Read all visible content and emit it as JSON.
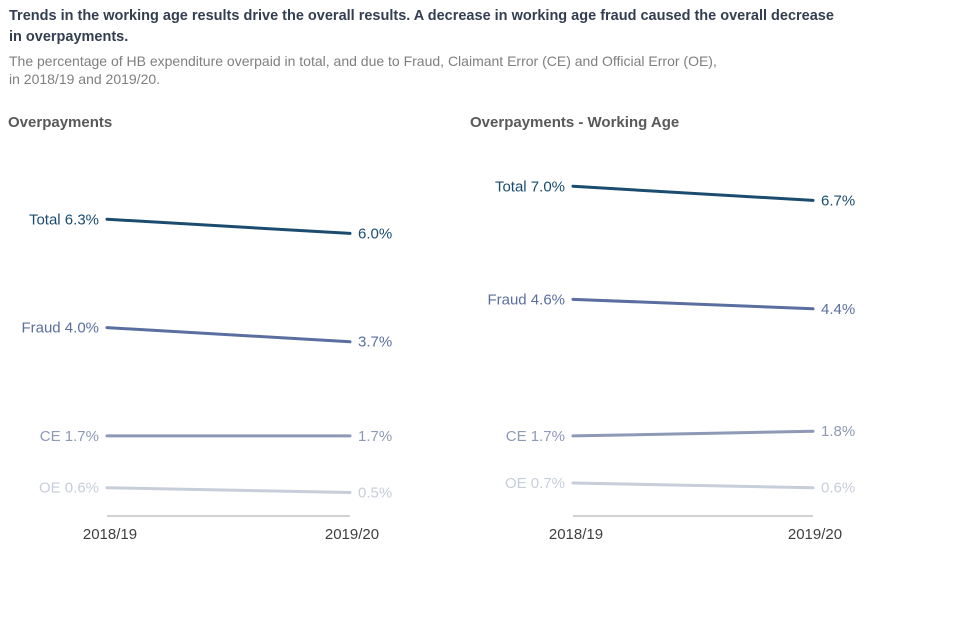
{
  "header": {
    "title_line1": "Trends in the working age results drive the overall results. A decrease in working age fraud caused the overall decrease",
    "title_line2": "in overpayments.",
    "subtitle_line1": "The percentage of HB expenditure overpaid in total, and due to Fraud, Claimant Error (CE) and Official Error (OE),",
    "subtitle_line2": "in 2018/19 and 2019/20."
  },
  "colors": {
    "title": "#333F50",
    "subtitle": "#7F7F7F",
    "chart_title": "#595959",
    "axis": "#A6A6A6",
    "tick_label": "#3F3F3F",
    "total": "#1B4C70",
    "fraud": "#5A6F9F",
    "ce": "#8D99B5",
    "oe": "#C7CEDA"
  },
  "chart_data": [
    {
      "type": "line",
      "subtype": "slope",
      "title": "Overpayments",
      "x": [
        "2018/19",
        "2019/20"
      ],
      "xlabel": "",
      "ylabel": "",
      "ylim": [
        0,
        8
      ],
      "grid": false,
      "legend": "inline-labels",
      "value_format": "percent",
      "series": [
        {
          "key": "total",
          "name": "Total",
          "values": [
            6.3,
            6.0
          ],
          "start_label": "Total 6.3%",
          "end_label": "6.0%",
          "color": "#1B4C70"
        },
        {
          "key": "fraud",
          "name": "Fraud",
          "values": [
            4.0,
            3.7
          ],
          "start_label": "Fraud 4.0%",
          "end_label": "3.7%",
          "color": "#5A6F9F"
        },
        {
          "key": "ce",
          "name": "CE",
          "values": [
            1.7,
            1.7
          ],
          "start_label": "CE 1.7%",
          "end_label": "1.7%",
          "color": "#8D99B5"
        },
        {
          "key": "oe",
          "name": "OE",
          "values": [
            0.6,
            0.5
          ],
          "start_label": "OE 0.6%",
          "end_label": "0.5%",
          "color": "#C7CEDA"
        }
      ]
    },
    {
      "type": "line",
      "subtype": "slope",
      "title": "Overpayments - Working Age",
      "x": [
        "2018/19",
        "2019/20"
      ],
      "xlabel": "",
      "ylabel": "",
      "ylim": [
        0,
        8
      ],
      "grid": false,
      "legend": "inline-labels",
      "value_format": "percent",
      "series": [
        {
          "key": "total",
          "name": "Total",
          "values": [
            7.0,
            6.7
          ],
          "start_label": "Total 7.0%",
          "end_label": "6.7%",
          "color": "#1B4C70"
        },
        {
          "key": "fraud",
          "name": "Fraud",
          "values": [
            4.6,
            4.4
          ],
          "start_label": "Fraud 4.6%",
          "end_label": "4.4%",
          "color": "#5A6F9F"
        },
        {
          "key": "ce",
          "name": "CE",
          "values": [
            1.7,
            1.8
          ],
          "start_label": "CE 1.7%",
          "end_label": "1.8%",
          "color": "#8D99B5"
        },
        {
          "key": "oe",
          "name": "OE",
          "values": [
            0.7,
            0.6
          ],
          "start_label": "OE 0.7%",
          "end_label": "0.6%",
          "color": "#C7CEDA"
        }
      ]
    }
  ]
}
